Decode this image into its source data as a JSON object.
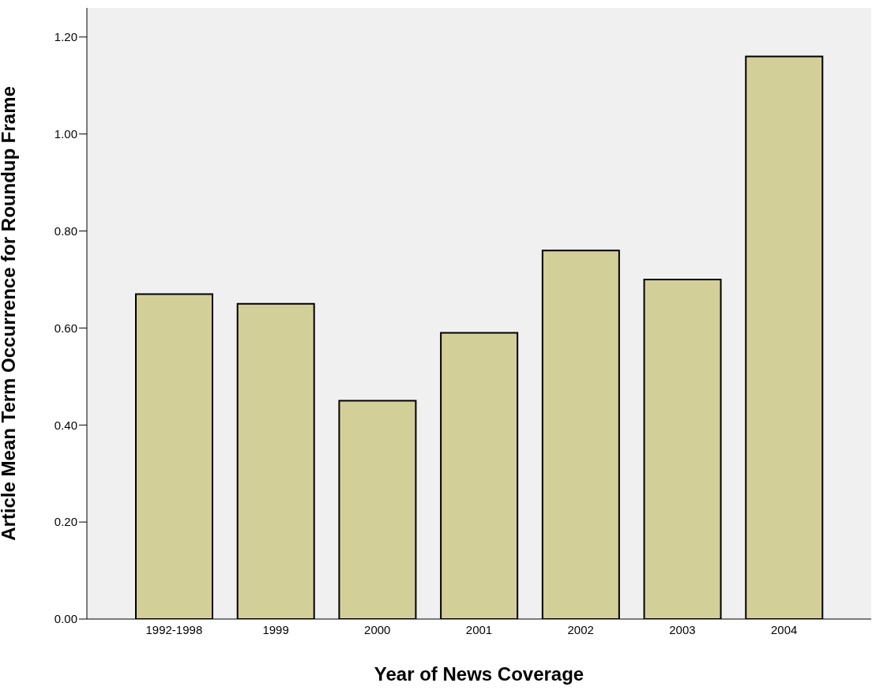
{
  "chart_data": {
    "type": "bar",
    "xlabel": "Year of News Coverage",
    "ylabel": "Article Mean Term Occurrence for Roundup Frame",
    "categories": [
      "1992-1998",
      "1999",
      "2000",
      "2001",
      "2002",
      "2003",
      "2004"
    ],
    "values": [
      0.67,
      0.65,
      0.45,
      0.59,
      0.76,
      0.7,
      1.16
    ],
    "color": "#d3cf98",
    "ylim": [
      0,
      1.26
    ],
    "yticks": [
      {
        "value": 0,
        "label": "0.00"
      },
      {
        "value": 0.2,
        "label": "0.20"
      },
      {
        "value": 0.4,
        "label": "0.40"
      },
      {
        "value": 0.6,
        "label": "0.60"
      },
      {
        "value": 0.8,
        "label": "0.80"
      },
      {
        "value": 1,
        "label": "1.00"
      },
      {
        "value": 1.2,
        "label": "1.20"
      }
    ],
    "grid": false
  }
}
